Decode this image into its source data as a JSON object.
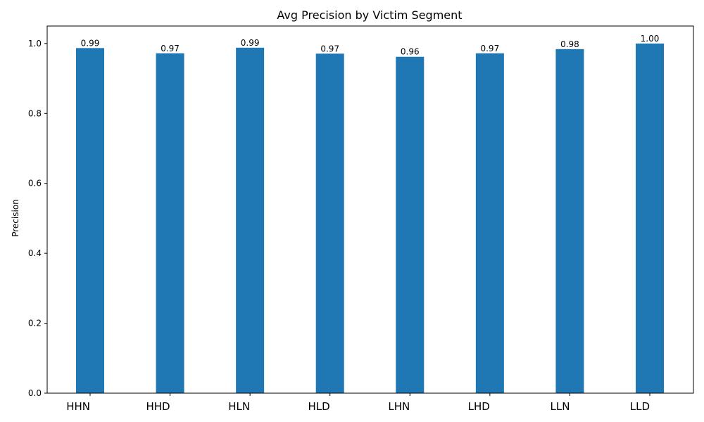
{
  "chart_data": {
    "type": "bar",
    "title": "Avg Precision by Victim Segment",
    "xlabel": "",
    "ylabel": "Precision",
    "categories": [
      "HHN",
      "HHD",
      "HLN",
      "HLD",
      "LHN",
      "LHD",
      "LLN",
      "LLD"
    ],
    "values": [
      0.987,
      0.972,
      0.988,
      0.971,
      0.962,
      0.972,
      0.984,
      1.0
    ],
    "value_labels": [
      "0.99",
      "0.97",
      "0.99",
      "0.97",
      "0.96",
      "0.97",
      "0.98",
      "1.00"
    ],
    "ylim": [
      0,
      1.05
    ],
    "yticks": [
      0.0,
      0.2,
      0.4,
      0.6,
      0.8,
      1.0
    ],
    "ytick_labels": [
      "0.0",
      "0.2",
      "0.4",
      "0.6",
      "0.8",
      "1.0"
    ],
    "grid": false,
    "legend": "none",
    "bar_color": "#1f77b4"
  }
}
